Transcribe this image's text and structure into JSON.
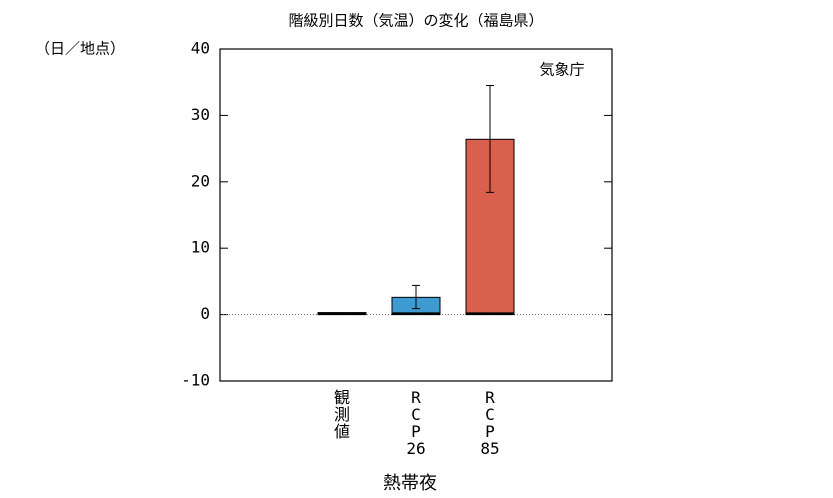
{
  "chart_data": {
    "type": "bar",
    "title": "階級別日数（気温）の変化（福島県）",
    "y_unit": "（日／地点）",
    "annotation": "気象庁",
    "xlabel": "熱帯夜",
    "categories": [
      "観測値",
      "RCP26",
      "RCP85"
    ],
    "values": [
      0.3,
      2.6,
      26.4
    ],
    "error_low": [
      null,
      0.9,
      18.4
    ],
    "error_high": [
      null,
      4.4,
      34.5
    ],
    "colors": [
      "#000000",
      "#3d9bd2",
      "#d9604e"
    ],
    "ylim": [
      -10,
      40
    ],
    "yticks": [
      -10,
      0,
      10,
      20,
      30,
      40
    ],
    "zero_line": true
  }
}
